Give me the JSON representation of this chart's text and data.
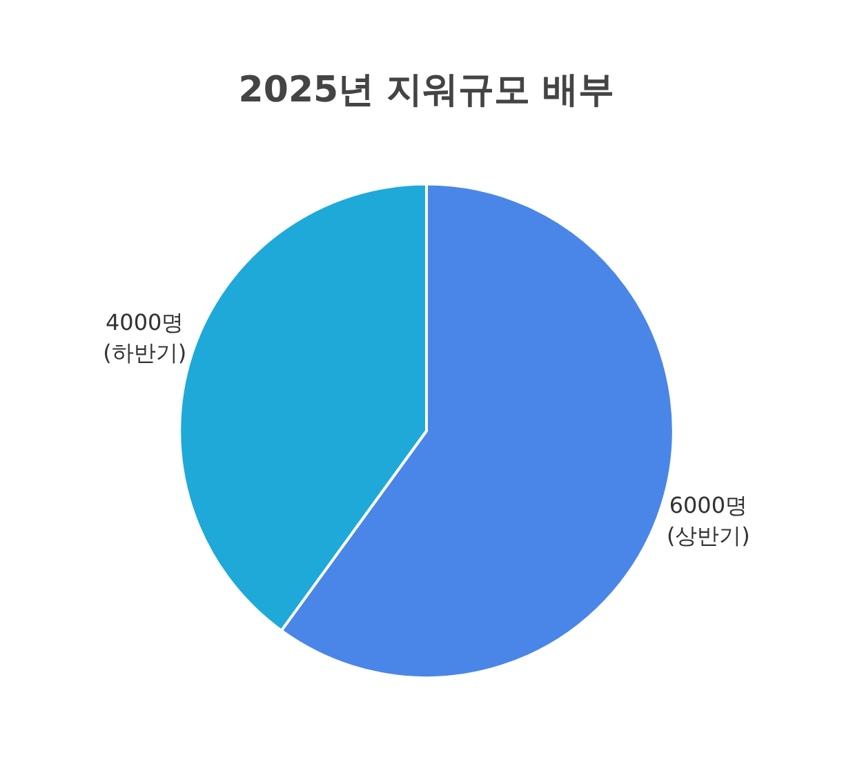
{
  "chart_data": {
    "type": "pie",
    "title": "2025년 지워규모 배부",
    "categories": [
      "(상반기)",
      "(하반기)"
    ],
    "values": [
      6000,
      4000
    ],
    "value_labels": [
      "6000명",
      "4000명"
    ],
    "colors": [
      "#4a86e8",
      "#1fa9d9"
    ],
    "legend": false
  }
}
